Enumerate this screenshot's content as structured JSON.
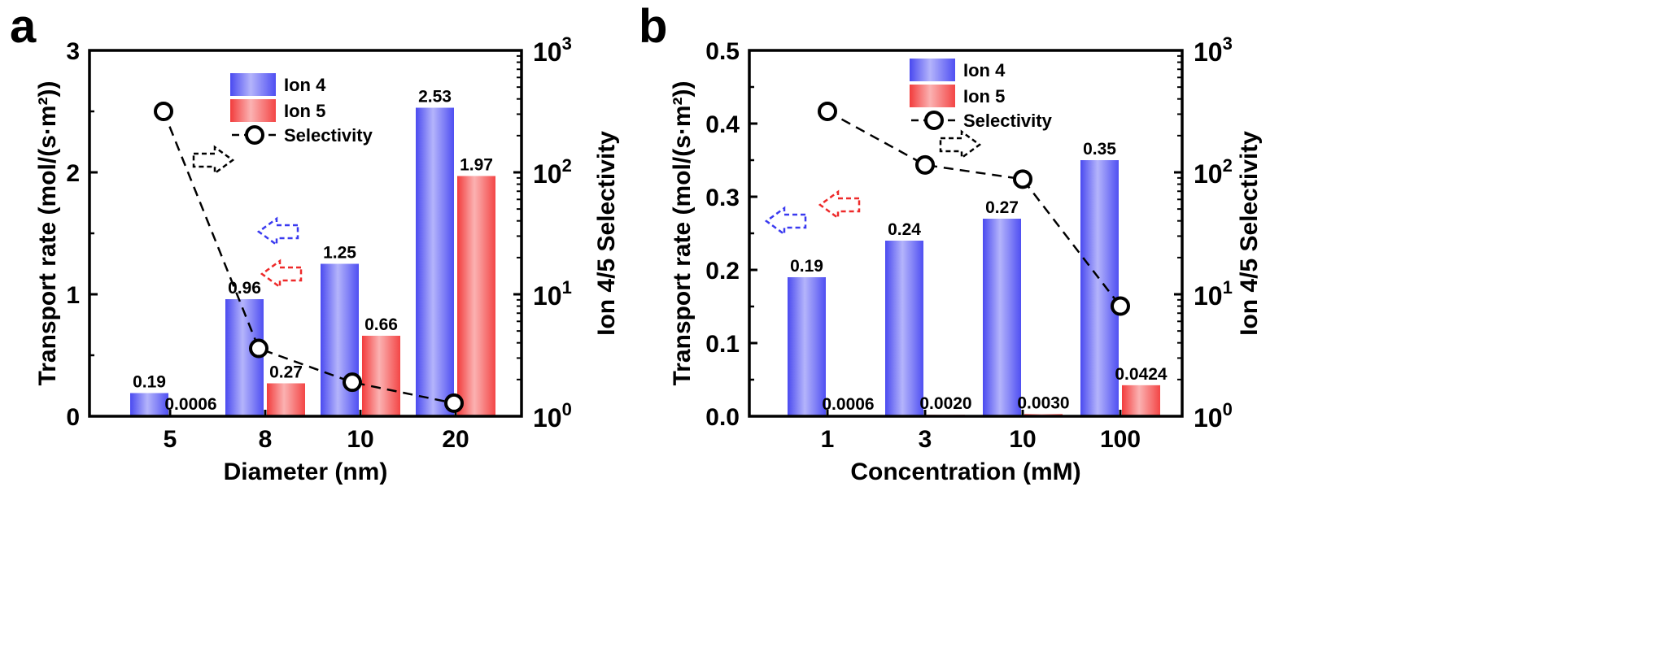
{
  "chart_data": [
    {
      "panel_label": "a",
      "type": "bar",
      "categories": [
        "5",
        "8",
        "10",
        "20"
      ],
      "series": [
        {
          "name": "Ion 4",
          "values": [
            0.19,
            0.96,
            1.25,
            2.53
          ],
          "labels": [
            "0.19",
            "0.96",
            "1.25",
            "2.53"
          ]
        },
        {
          "name": "Ion 5",
          "values": [
            0.0006,
            0.27,
            0.66,
            1.97
          ],
          "labels": [
            "0.0006",
            "0.27",
            "0.66",
            "1.97"
          ]
        }
      ],
      "selectivity": {
        "name": "Selectivity",
        "values": [
          316,
          3.6,
          1.9,
          1.28
        ],
        "scale": "log",
        "axis": "right"
      },
      "xlabel": "Diameter (nm)",
      "ylabel": "Transport rate (mol/(s·m²))",
      "ylabel_right": "Ion 4/5 Selectivity",
      "ylim": [
        0,
        3
      ],
      "yticks": [
        "0",
        "1",
        "2",
        "3"
      ],
      "ylim_right": [
        1,
        1000
      ],
      "yticks_right": [
        {
          "base": "10",
          "exp": "0"
        },
        {
          "base": "10",
          "exp": "1"
        },
        {
          "base": "10",
          "exp": "2"
        },
        {
          "base": "10",
          "exp": "3"
        }
      ],
      "legend_position": "top-center",
      "grid": false,
      "colors": {
        "ion4": "#5b5bf0",
        "ion5": "#f04a4a",
        "selectivity": "#000000"
      }
    },
    {
      "panel_label": "b",
      "type": "bar",
      "categories": [
        "1",
        "3",
        "10",
        "100"
      ],
      "series": [
        {
          "name": "Ion 4",
          "values": [
            0.19,
            0.24,
            0.27,
            0.35
          ],
          "labels": [
            "0.19",
            "0.24",
            "0.27",
            "0.35"
          ]
        },
        {
          "name": "Ion 5",
          "values": [
            0.0006,
            0.002,
            0.003,
            0.0424
          ],
          "labels": [
            "0.0006",
            "0.0020",
            "0.0030",
            "0.0424"
          ]
        }
      ],
      "selectivity": {
        "name": "Selectivity",
        "values": [
          316,
          115,
          88,
          8
        ],
        "scale": "log",
        "axis": "right"
      },
      "xlabel": "Concentration (mM)",
      "ylabel": "Transport rate (mol/(s·m²))",
      "ylabel_right": "Ion 4/5 Selectivity",
      "ylim": [
        0,
        0.5
      ],
      "yticks": [
        "0.0",
        "0.1",
        "0.2",
        "0.3",
        "0.4",
        "0.5"
      ],
      "ylim_right": [
        1,
        1000
      ],
      "yticks_right": [
        {
          "base": "10",
          "exp": "0"
        },
        {
          "base": "10",
          "exp": "1"
        },
        {
          "base": "10",
          "exp": "2"
        },
        {
          "base": "10",
          "exp": "3"
        }
      ],
      "legend_position": "top-center",
      "grid": false,
      "colors": {
        "ion4": "#5b5bf0",
        "ion5": "#f04a4a",
        "selectivity": "#000000"
      }
    }
  ]
}
